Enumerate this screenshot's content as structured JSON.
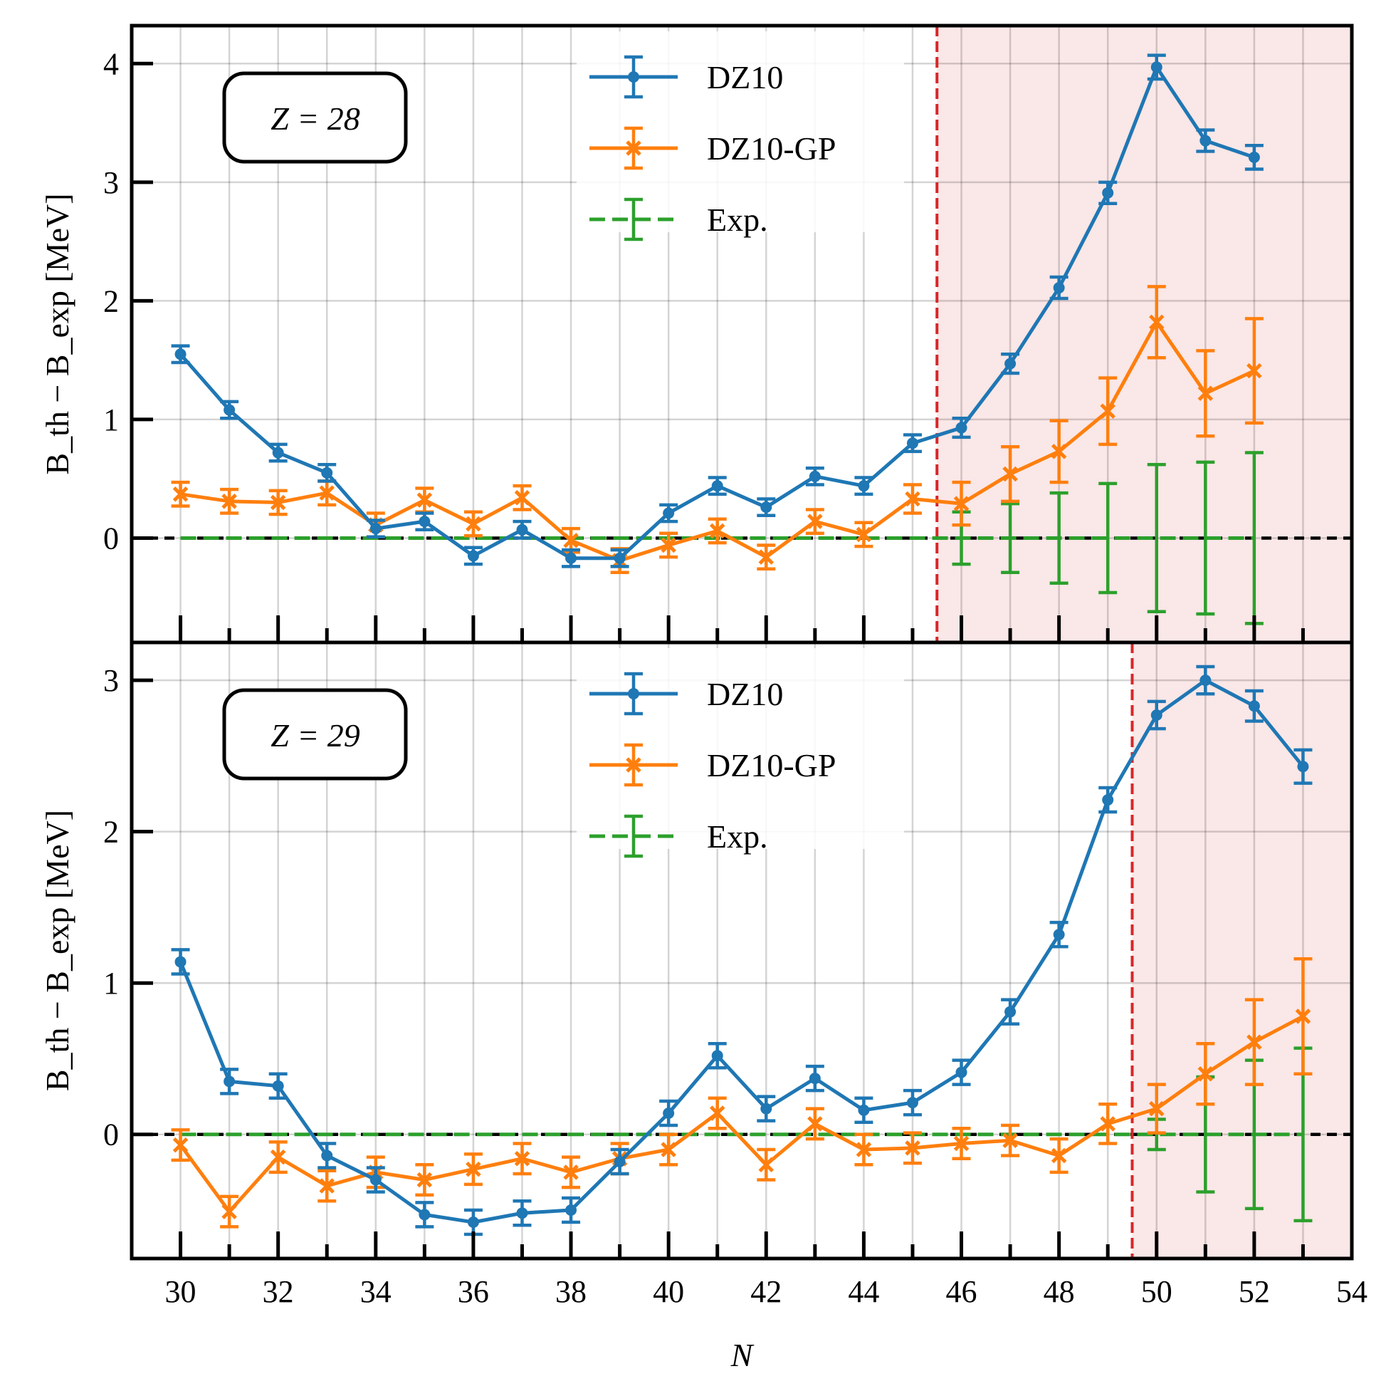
{
  "chart_data": {
    "type": "line",
    "title": "",
    "xlabel": "N",
    "xlim": [
      29,
      54
    ],
    "xticks": [
      30,
      32,
      34,
      36,
      38,
      40,
      42,
      44,
      46,
      48,
      50,
      52,
      54
    ],
    "panels": [
      {
        "annotation": "Z = 28",
        "ylabel": "B_th − B_exp [MeV]",
        "ylim": [
          -0.88,
          4.32
        ],
        "yticks": [
          0,
          1,
          2,
          3,
          4
        ],
        "boundary_x": 45.5,
        "shaded_region": [
          45.5,
          54
        ],
        "legend": [
          "DZ10",
          "DZ10-GP",
          "Exp."
        ],
        "series": [
          {
            "name": "DZ10",
            "color": "#1f77b4",
            "marker": "circle",
            "x": [
              30,
              31,
              32,
              33,
              34,
              35,
              36,
              37,
              38,
              39,
              40,
              41,
              42,
              43,
              44,
              45,
              46,
              47,
              48,
              49,
              50,
              51,
              52
            ],
            "values": [
              1.55,
              1.08,
              0.72,
              0.55,
              0.08,
              0.14,
              -0.15,
              0.07,
              -0.17,
              -0.17,
              0.21,
              0.44,
              0.26,
              0.52,
              0.44,
              0.8,
              0.93,
              1.47,
              2.11,
              2.91,
              3.97,
              3.35,
              3.21
            ],
            "errors": [
              0.07,
              0.07,
              0.07,
              0.07,
              0.07,
              0.07,
              0.07,
              0.07,
              0.07,
              0.07,
              0.07,
              0.07,
              0.07,
              0.07,
              0.07,
              0.07,
              0.08,
              0.08,
              0.09,
              0.09,
              0.1,
              0.09,
              0.1
            ]
          },
          {
            "name": "DZ10-GP",
            "color": "#ff7f0e",
            "marker": "x",
            "x": [
              30,
              31,
              32,
              33,
              34,
              35,
              36,
              37,
              38,
              39,
              40,
              41,
              42,
              43,
              44,
              45,
              46,
              47,
              48,
              49,
              50,
              51,
              52
            ],
            "values": [
              0.37,
              0.31,
              0.3,
              0.38,
              0.11,
              0.32,
              0.12,
              0.34,
              -0.02,
              -0.19,
              -0.06,
              0.06,
              -0.16,
              0.14,
              0.03,
              0.33,
              0.29,
              0.54,
              0.73,
              1.07,
              1.82,
              1.22,
              1.41
            ],
            "errors": [
              0.1,
              0.1,
              0.1,
              0.1,
              0.1,
              0.1,
              0.1,
              0.1,
              0.1,
              0.1,
              0.1,
              0.1,
              0.1,
              0.1,
              0.1,
              0.12,
              0.18,
              0.23,
              0.26,
              0.28,
              0.3,
              0.36,
              0.44
            ]
          },
          {
            "name": "Exp.",
            "color": "#2ca02c",
            "marker": "none",
            "x": [
              30,
              31,
              32,
              33,
              34,
              35,
              36,
              37,
              38,
              39,
              40,
              41,
              42,
              43,
              44,
              45,
              46,
              47,
              48,
              49,
              50,
              51,
              52
            ],
            "values": [
              0,
              0,
              0,
              0,
              0,
              0,
              0,
              0,
              0,
              0,
              0,
              0,
              0,
              0,
              0,
              0,
              0,
              0,
              0,
              0,
              0,
              0,
              0
            ],
            "errors": [
              0,
              0,
              0,
              0,
              0,
              0,
              0,
              0,
              0,
              0,
              0,
              0,
              0,
              0,
              0,
              0,
              0.22,
              0.29,
              0.38,
              0.46,
              0.62,
              0.64,
              0.72
            ]
          }
        ]
      },
      {
        "annotation": "Z = 29",
        "ylabel": "B_th − B_exp [MeV]",
        "ylim": [
          -0.82,
          3.25
        ],
        "yticks": [
          0,
          1,
          2,
          3
        ],
        "boundary_x": 49.5,
        "shaded_region": [
          49.5,
          54
        ],
        "legend": [
          "DZ10",
          "DZ10-GP",
          "Exp."
        ],
        "series": [
          {
            "name": "DZ10",
            "color": "#1f77b4",
            "marker": "circle",
            "x": [
              30,
              31,
              32,
              33,
              34,
              35,
              36,
              37,
              38,
              39,
              40,
              41,
              42,
              43,
              44,
              45,
              46,
              47,
              48,
              49,
              50,
              51,
              52,
              53
            ],
            "values": [
              1.14,
              0.35,
              0.32,
              -0.14,
              -0.3,
              -0.53,
              -0.58,
              -0.52,
              -0.5,
              -0.18,
              0.14,
              0.52,
              0.17,
              0.37,
              0.16,
              0.21,
              0.41,
              0.81,
              1.32,
              2.21,
              2.77,
              3.0,
              2.83,
              2.43
            ],
            "errors": [
              0.08,
              0.08,
              0.08,
              0.08,
              0.08,
              0.08,
              0.08,
              0.08,
              0.08,
              0.08,
              0.08,
              0.08,
              0.08,
              0.08,
              0.08,
              0.08,
              0.08,
              0.08,
              0.08,
              0.08,
              0.09,
              0.09,
              0.1,
              0.11
            ]
          },
          {
            "name": "DZ10-GP",
            "color": "#ff7f0e",
            "marker": "x",
            "x": [
              30,
              31,
              32,
              33,
              34,
              35,
              36,
              37,
              38,
              39,
              40,
              41,
              42,
              43,
              44,
              45,
              46,
              47,
              48,
              49,
              50,
              51,
              52,
              53
            ],
            "values": [
              -0.07,
              -0.51,
              -0.15,
              -0.34,
              -0.25,
              -0.3,
              -0.23,
              -0.16,
              -0.25,
              -0.16,
              -0.1,
              0.14,
              -0.2,
              0.07,
              -0.1,
              -0.09,
              -0.06,
              -0.04,
              -0.14,
              0.07,
              0.17,
              0.4,
              0.61,
              0.78
            ],
            "errors": [
              0.1,
              0.1,
              0.1,
              0.1,
              0.1,
              0.1,
              0.1,
              0.1,
              0.1,
              0.1,
              0.1,
              0.1,
              0.1,
              0.1,
              0.1,
              0.1,
              0.1,
              0.1,
              0.11,
              0.13,
              0.16,
              0.2,
              0.28,
              0.38
            ]
          },
          {
            "name": "Exp.",
            "color": "#2ca02c",
            "marker": "none",
            "x": [
              30,
              31,
              32,
              33,
              34,
              35,
              36,
              37,
              38,
              39,
              40,
              41,
              42,
              43,
              44,
              45,
              46,
              47,
              48,
              49,
              50,
              51,
              52,
              53
            ],
            "values": [
              0,
              0,
              0,
              0,
              0,
              0,
              0,
              0,
              0,
              0,
              0,
              0,
              0,
              0,
              0,
              0,
              0,
              0,
              0,
              0,
              0,
              0,
              0,
              0
            ],
            "errors": [
              0,
              0,
              0,
              0,
              0,
              0,
              0,
              0,
              0,
              0,
              0,
              0,
              0,
              0,
              0,
              0,
              0,
              0,
              0,
              0,
              0.1,
              0.38,
              0.49,
              0.57
            ]
          }
        ]
      }
    ]
  }
}
